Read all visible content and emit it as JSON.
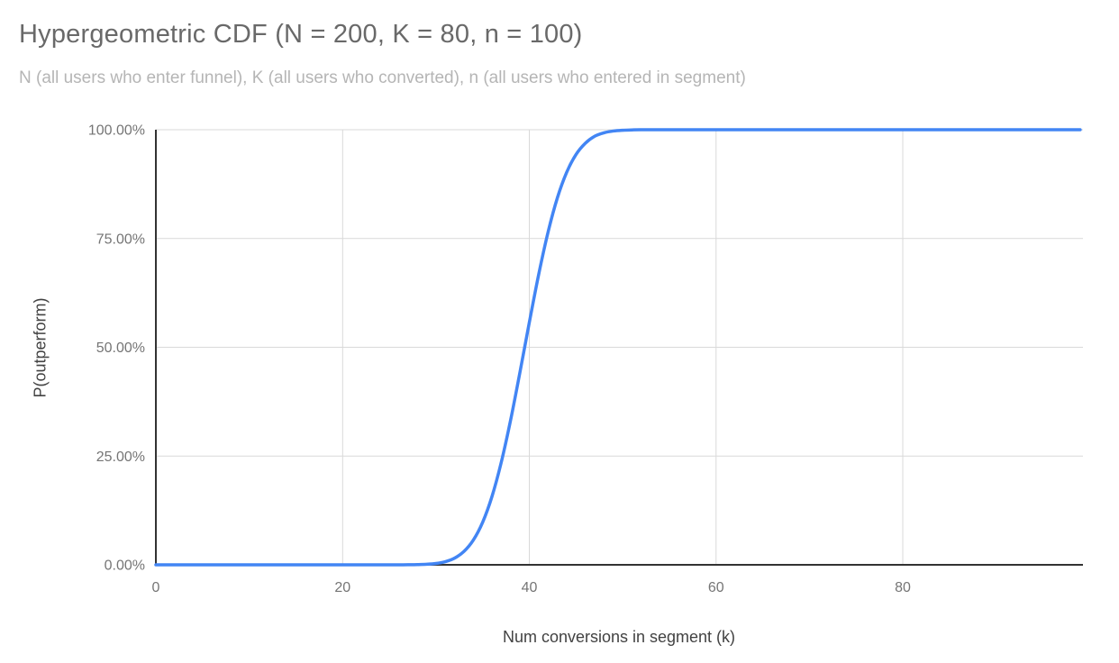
{
  "chart_data": {
    "type": "line",
    "title": "Hypergeometric CDF (N = 200, K = 80, n = 100)",
    "subtitle": "N (all users who enter funnel), K (all users who converted), n (all users who entered in segment)",
    "xlabel": "Num conversions in segment (k)",
    "ylabel": "P(outperform)",
    "xlim": [
      0,
      99.3
    ],
    "ylim": [
      0,
      100
    ],
    "x_ticks": [
      0,
      20,
      40,
      60,
      80
    ],
    "y_ticks": [
      0,
      25,
      50,
      75,
      100
    ],
    "y_tick_labels": [
      "0.00%",
      "25.00%",
      "50.00%",
      "75.00%",
      "100.00%"
    ],
    "grid": true,
    "legend": "none",
    "series": [
      {
        "name": "P(outperform)",
        "x": [
          0,
          1,
          2,
          3,
          4,
          5,
          6,
          7,
          8,
          9,
          10,
          11,
          12,
          13,
          14,
          15,
          16,
          17,
          18,
          19,
          20,
          21,
          22,
          23,
          24,
          25,
          26,
          27,
          28,
          29,
          30,
          31,
          32,
          33,
          34,
          35,
          36,
          37,
          38,
          39,
          40,
          41,
          42,
          43,
          44,
          45,
          46,
          47,
          48,
          49,
          50,
          51,
          52,
          53,
          54,
          55,
          56,
          57,
          58,
          59,
          60,
          61,
          62,
          63,
          64,
          65,
          66,
          67,
          68,
          69,
          70,
          71,
          72,
          73,
          74,
          75,
          76,
          77,
          78,
          79,
          80,
          81,
          82,
          83,
          84,
          85,
          86,
          87,
          88,
          89,
          90,
          91,
          92,
          93,
          94,
          95,
          96,
          97,
          98,
          99
        ],
        "y_percent": [
          0,
          0,
          0,
          0,
          0,
          0,
          0,
          0,
          0,
          0,
          0,
          0,
          0,
          0,
          0,
          0,
          0,
          0,
          0,
          0,
          0,
          0,
          0,
          0.0001,
          0.0004,
          0.0015,
          0.005,
          0.016,
          0.047,
          0.125,
          0.31,
          0.72,
          1.54,
          3.07,
          5.67,
          9.77,
          15.7,
          23.6,
          33.3,
          44.3,
          55.7,
          66.7,
          76.4,
          84.3,
          90.2,
          94.3,
          96.9,
          98.5,
          99.3,
          99.7,
          99.88,
          99.96,
          99.99,
          100,
          100,
          100,
          100,
          100,
          100,
          100,
          100,
          100,
          100,
          100,
          100,
          100,
          100,
          100,
          100,
          100,
          100,
          100,
          100,
          100,
          100,
          100,
          100,
          100,
          100,
          100,
          100,
          100,
          100,
          100,
          100,
          100,
          100,
          100,
          100,
          100,
          100,
          100,
          100,
          100,
          100,
          100,
          100,
          100,
          100,
          100,
          100
        ]
      }
    ],
    "colors": {
      "line": "#4285F4",
      "gridline": "#d9d9d9",
      "axis_line": "#333333",
      "tick_label": "#757575",
      "axis_title": "#424242",
      "title": "#696969",
      "subtitle": "#b5b5b5",
      "background": "#ffffff"
    }
  }
}
